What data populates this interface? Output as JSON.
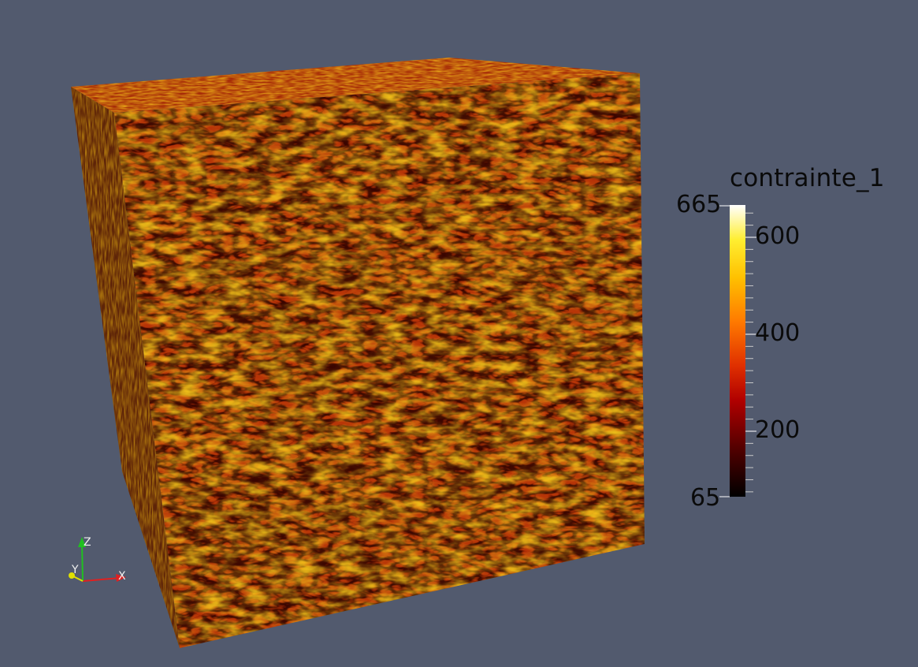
{
  "scalar_bar": {
    "title": "contrainte_1",
    "range_min_label": "65",
    "range_max_label": "665",
    "range": [
      65,
      665
    ],
    "tick_labels": [
      {
        "text": "600",
        "value": 600
      },
      {
        "text": "400",
        "value": 400
      },
      {
        "text": "200",
        "value": 200
      }
    ],
    "colormap": [
      "#000000",
      "#6e0000",
      "#d40000",
      "#ff6a00",
      "#ffb400",
      "#ffe600",
      "#ffffff"
    ]
  },
  "orientation_axes": {
    "x_label": "X",
    "y_label": "Y",
    "z_label": "Z",
    "x_color": "#e02020",
    "y_color": "#e0e000",
    "z_color": "#20c020"
  },
  "background_color": "#525a6e"
}
